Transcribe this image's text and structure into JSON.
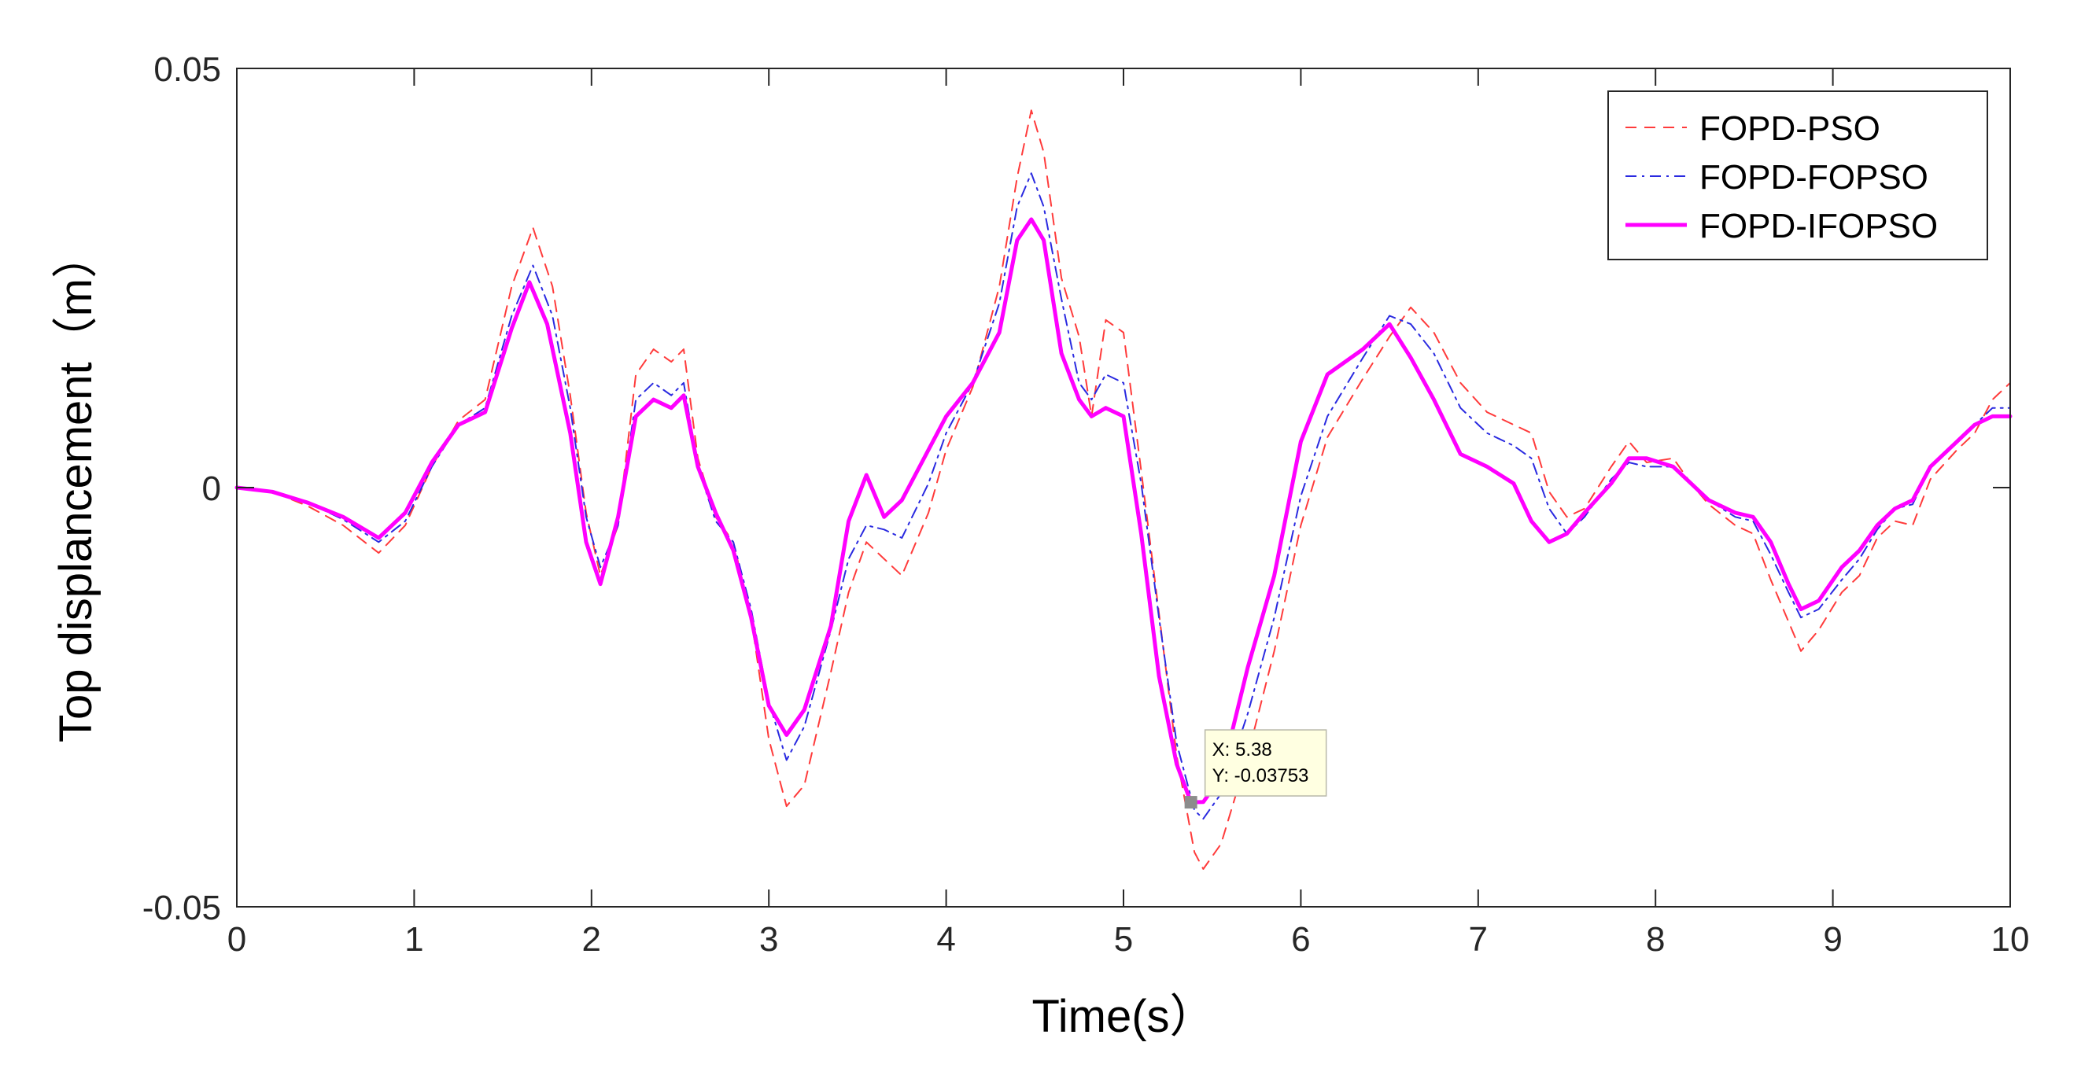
{
  "chart_data": {
    "type": "line",
    "xlabel": "Time(s）",
    "ylabel": "Top displancement（m）",
    "xlim": [
      0,
      10
    ],
    "ylim": [
      -0.05,
      0.05
    ],
    "xticks": [
      0,
      1,
      2,
      3,
      4,
      5,
      6,
      7,
      8,
      9,
      10
    ],
    "xtick_labels": [
      "0",
      "1",
      "2",
      "3",
      "4",
      "5",
      "6",
      "7",
      "8",
      "9",
      "10"
    ],
    "yticks": [
      -0.05,
      0,
      0.05
    ],
    "ytick_labels": [
      "-0.05",
      "0",
      "0.05"
    ],
    "grid": false,
    "legend_position": "top-right",
    "series": [
      {
        "name": "FOPD-PSO",
        "color": "#ff3b3b",
        "style": "dashed",
        "points": [
          [
            0,
            0
          ],
          [
            0.2,
            -0.0005
          ],
          [
            0.4,
            -0.0022
          ],
          [
            0.6,
            -0.0045
          ],
          [
            0.8,
            -0.0078
          ],
          [
            0.95,
            -0.0045
          ],
          [
            1.1,
            0.0025
          ],
          [
            1.25,
            0.008
          ],
          [
            1.4,
            0.0105
          ],
          [
            1.55,
            0.024
          ],
          [
            1.67,
            0.031
          ],
          [
            1.78,
            0.024
          ],
          [
            1.88,
            0.011
          ],
          [
            1.97,
            -0.003
          ],
          [
            2.05,
            -0.0105
          ],
          [
            2.15,
            -0.0045
          ],
          [
            2.25,
            0.0135
          ],
          [
            2.35,
            0.0165
          ],
          [
            2.45,
            0.015
          ],
          [
            2.52,
            0.0165
          ],
          [
            2.6,
            0.0035
          ],
          [
            2.7,
            -0.0035
          ],
          [
            2.8,
            -0.0065
          ],
          [
            2.9,
            -0.0155
          ],
          [
            3.0,
            -0.03
          ],
          [
            3.1,
            -0.038
          ],
          [
            3.2,
            -0.0355
          ],
          [
            3.35,
            -0.022
          ],
          [
            3.45,
            -0.0125
          ],
          [
            3.55,
            -0.0065
          ],
          [
            3.65,
            -0.0085
          ],
          [
            3.75,
            -0.0105
          ],
          [
            3.9,
            -0.003
          ],
          [
            4.0,
            0.0045
          ],
          [
            4.15,
            0.012
          ],
          [
            4.3,
            0.024
          ],
          [
            4.4,
            0.037
          ],
          [
            4.48,
            0.045
          ],
          [
            4.55,
            0.04
          ],
          [
            4.65,
            0.025
          ],
          [
            4.75,
            0.018
          ],
          [
            4.82,
            0.0085
          ],
          [
            4.9,
            0.02
          ],
          [
            5.0,
            0.0185
          ],
          [
            5.1,
            0.002
          ],
          [
            5.2,
            -0.015
          ],
          [
            5.3,
            -0.032
          ],
          [
            5.4,
            -0.0435
          ],
          [
            5.45,
            -0.0455
          ],
          [
            5.55,
            -0.0425
          ],
          [
            5.7,
            -0.032
          ],
          [
            5.85,
            -0.0195
          ],
          [
            6.0,
            -0.0045
          ],
          [
            6.15,
            0.006
          ],
          [
            6.35,
            0.013
          ],
          [
            6.5,
            0.018
          ],
          [
            6.62,
            0.0215
          ],
          [
            6.75,
            0.0185
          ],
          [
            6.9,
            0.0125
          ],
          [
            7.05,
            0.009
          ],
          [
            7.2,
            0.0075
          ],
          [
            7.3,
            0.0065
          ],
          [
            7.4,
            -0.0005
          ],
          [
            7.5,
            -0.0035
          ],
          [
            7.6,
            -0.0025
          ],
          [
            7.75,
            0.0025
          ],
          [
            7.85,
            0.0055
          ],
          [
            7.95,
            0.003
          ],
          [
            8.1,
            0.0035
          ],
          [
            8.2,
            0.0005
          ],
          [
            8.3,
            -0.002
          ],
          [
            8.45,
            -0.0045
          ],
          [
            8.55,
            -0.0055
          ],
          [
            8.65,
            -0.011
          ],
          [
            8.75,
            -0.016
          ],
          [
            8.82,
            -0.0195
          ],
          [
            8.92,
            -0.017
          ],
          [
            9.05,
            -0.0125
          ],
          [
            9.15,
            -0.0105
          ],
          [
            9.25,
            -0.006
          ],
          [
            9.35,
            -0.004
          ],
          [
            9.45,
            -0.0045
          ],
          [
            9.55,
            0.001
          ],
          [
            9.7,
            0.0045
          ],
          [
            9.8,
            0.0065
          ],
          [
            9.9,
            0.0105
          ],
          [
            10.0,
            0.0125
          ]
        ]
      },
      {
        "name": "FOPD-FOPSO",
        "color": "#2a2ae0",
        "style": "dashdot",
        "points": [
          [
            0,
            0
          ],
          [
            0.2,
            -0.0005
          ],
          [
            0.4,
            -0.0018
          ],
          [
            0.6,
            -0.0038
          ],
          [
            0.8,
            -0.0065
          ],
          [
            0.95,
            -0.004
          ],
          [
            1.1,
            0.0025
          ],
          [
            1.25,
            0.0075
          ],
          [
            1.4,
            0.0095
          ],
          [
            1.55,
            0.0205
          ],
          [
            1.67,
            0.0265
          ],
          [
            1.78,
            0.0205
          ],
          [
            1.88,
            0.0095
          ],
          [
            1.97,
            -0.0035
          ],
          [
            2.05,
            -0.0095
          ],
          [
            2.15,
            -0.0045
          ],
          [
            2.25,
            0.0105
          ],
          [
            2.35,
            0.0125
          ],
          [
            2.45,
            0.011
          ],
          [
            2.52,
            0.0125
          ],
          [
            2.6,
            0.0025
          ],
          [
            2.7,
            -0.004
          ],
          [
            2.8,
            -0.0065
          ],
          [
            2.9,
            -0.0145
          ],
          [
            3.0,
            -0.0255
          ],
          [
            3.1,
            -0.0325
          ],
          [
            3.2,
            -0.0285
          ],
          [
            3.35,
            -0.017
          ],
          [
            3.45,
            -0.0085
          ],
          [
            3.55,
            -0.0045
          ],
          [
            3.65,
            -0.005
          ],
          [
            3.75,
            -0.006
          ],
          [
            3.9,
            0.0005
          ],
          [
            4.0,
            0.0065
          ],
          [
            4.15,
            0.0125
          ],
          [
            4.3,
            0.022
          ],
          [
            4.4,
            0.0335
          ],
          [
            4.48,
            0.0375
          ],
          [
            4.55,
            0.0335
          ],
          [
            4.65,
            0.0225
          ],
          [
            4.75,
            0.0125
          ],
          [
            4.82,
            0.0105
          ],
          [
            4.9,
            0.0135
          ],
          [
            5.0,
            0.0125
          ],
          [
            5.1,
            0.0005
          ],
          [
            5.2,
            -0.0155
          ],
          [
            5.3,
            -0.0305
          ],
          [
            5.4,
            -0.0385
          ],
          [
            5.45,
            -0.0395
          ],
          [
            5.55,
            -0.0365
          ],
          [
            5.7,
            -0.027
          ],
          [
            5.85,
            -0.0155
          ],
          [
            6.0,
            -0.001
          ],
          [
            6.15,
            0.0085
          ],
          [
            6.35,
            0.0155
          ],
          [
            6.5,
            0.0205
          ],
          [
            6.62,
            0.0195
          ],
          [
            6.75,
            0.016
          ],
          [
            6.9,
            0.0095
          ],
          [
            7.05,
            0.0065
          ],
          [
            7.2,
            0.005
          ],
          [
            7.3,
            0.0035
          ],
          [
            7.4,
            -0.0025
          ],
          [
            7.5,
            -0.0055
          ],
          [
            7.6,
            -0.0035
          ],
          [
            7.75,
            0.001
          ],
          [
            7.85,
            0.003
          ],
          [
            7.95,
            0.0025
          ],
          [
            8.1,
            0.0025
          ],
          [
            8.2,
            0.0005
          ],
          [
            8.3,
            -0.0015
          ],
          [
            8.45,
            -0.0035
          ],
          [
            8.55,
            -0.004
          ],
          [
            8.65,
            -0.008
          ],
          [
            8.75,
            -0.0125
          ],
          [
            8.82,
            -0.0155
          ],
          [
            8.92,
            -0.0145
          ],
          [
            9.05,
            -0.011
          ],
          [
            9.15,
            -0.0085
          ],
          [
            9.25,
            -0.005
          ],
          [
            9.35,
            -0.0025
          ],
          [
            9.45,
            -0.002
          ],
          [
            9.55,
            0.0025
          ],
          [
            9.7,
            0.0055
          ],
          [
            9.8,
            0.0075
          ],
          [
            9.9,
            0.0095
          ],
          [
            10.0,
            0.0095
          ]
        ]
      },
      {
        "name": "FOPD-IFOPSO",
        "color": "#ff00ff",
        "style": "solid",
        "points": [
          [
            0,
            0
          ],
          [
            0.2,
            -0.0005
          ],
          [
            0.4,
            -0.0018
          ],
          [
            0.6,
            -0.0035
          ],
          [
            0.8,
            -0.006
          ],
          [
            0.95,
            -0.003
          ],
          [
            1.1,
            0.003
          ],
          [
            1.25,
            0.0075
          ],
          [
            1.4,
            0.009
          ],
          [
            1.55,
            0.019
          ],
          [
            1.65,
            0.0245
          ],
          [
            1.75,
            0.0195
          ],
          [
            1.88,
            0.0065
          ],
          [
            1.97,
            -0.0065
          ],
          [
            2.05,
            -0.0115
          ],
          [
            2.15,
            -0.0035
          ],
          [
            2.25,
            0.0085
          ],
          [
            2.35,
            0.0105
          ],
          [
            2.45,
            0.0095
          ],
          [
            2.52,
            0.011
          ],
          [
            2.6,
            0.0025
          ],
          [
            2.7,
            -0.003
          ],
          [
            2.8,
            -0.0075
          ],
          [
            2.9,
            -0.0155
          ],
          [
            3.0,
            -0.026
          ],
          [
            3.1,
            -0.0295
          ],
          [
            3.2,
            -0.0265
          ],
          [
            3.35,
            -0.0165
          ],
          [
            3.45,
            -0.004
          ],
          [
            3.55,
            0.0015
          ],
          [
            3.65,
            -0.0035
          ],
          [
            3.75,
            -0.0015
          ],
          [
            3.9,
            0.0045
          ],
          [
            4.0,
            0.0085
          ],
          [
            4.15,
            0.0125
          ],
          [
            4.3,
            0.0185
          ],
          [
            4.4,
            0.0295
          ],
          [
            4.48,
            0.032
          ],
          [
            4.55,
            0.0295
          ],
          [
            4.65,
            0.016
          ],
          [
            4.75,
            0.0105
          ],
          [
            4.82,
            0.0085
          ],
          [
            4.9,
            0.0095
          ],
          [
            5.0,
            0.0085
          ],
          [
            5.1,
            -0.0055
          ],
          [
            5.2,
            -0.0225
          ],
          [
            5.3,
            -0.033
          ],
          [
            5.38,
            -0.03753
          ],
          [
            5.45,
            -0.0375
          ],
          [
            5.55,
            -0.0345
          ],
          [
            5.7,
            -0.0215
          ],
          [
            5.85,
            -0.0105
          ],
          [
            6.0,
            0.0055
          ],
          [
            6.15,
            0.0135
          ],
          [
            6.35,
            0.0165
          ],
          [
            6.5,
            0.0195
          ],
          [
            6.62,
            0.0155
          ],
          [
            6.75,
            0.0105
          ],
          [
            6.9,
            0.004
          ],
          [
            7.05,
            0.0025
          ],
          [
            7.2,
            0.0005
          ],
          [
            7.3,
            -0.004
          ],
          [
            7.4,
            -0.0065
          ],
          [
            7.5,
            -0.0055
          ],
          [
            7.6,
            -0.003
          ],
          [
            7.75,
            0.0005
          ],
          [
            7.85,
            0.0035
          ],
          [
            7.95,
            0.0035
          ],
          [
            8.1,
            0.0025
          ],
          [
            8.2,
            0.0005
          ],
          [
            8.3,
            -0.0015
          ],
          [
            8.45,
            -0.003
          ],
          [
            8.55,
            -0.0035
          ],
          [
            8.65,
            -0.0065
          ],
          [
            8.75,
            -0.0115
          ],
          [
            8.82,
            -0.0145
          ],
          [
            8.92,
            -0.0135
          ],
          [
            9.05,
            -0.0095
          ],
          [
            9.15,
            -0.0075
          ],
          [
            9.25,
            -0.0045
          ],
          [
            9.35,
            -0.0025
          ],
          [
            9.45,
            -0.0015
          ],
          [
            9.55,
            0.0025
          ],
          [
            9.7,
            0.0055
          ],
          [
            9.8,
            0.0075
          ],
          [
            9.9,
            0.0085
          ],
          [
            10.0,
            0.0085
          ]
        ]
      }
    ],
    "annotations": [
      {
        "type": "datatip",
        "x": 5.38,
        "y": -0.03753,
        "lines": [
          "X: 5.38",
          "Y: -0.03753"
        ]
      }
    ]
  }
}
